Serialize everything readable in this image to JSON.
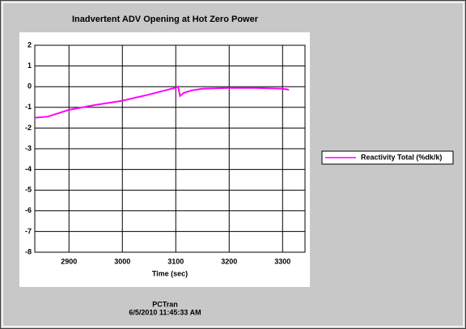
{
  "chart_data": {
    "type": "line",
    "title": "Inadvertent ADV Opening at Hot Zero Power",
    "xlabel": "Time (sec)",
    "annotations": [
      "PCTran",
      "6/5/2010 11:45:33 AM"
    ],
    "x": [
      2836,
      2860,
      2900,
      2950,
      3000,
      3050,
      3080,
      3100,
      3104,
      3106,
      3108,
      3115,
      3130,
      3150,
      3200,
      3250,
      3300,
      3312
    ],
    "series": [
      {
        "name": "Reactivity Total (%dk/k)",
        "color": "#ff00ff",
        "values": [
          -1.5,
          -1.45,
          -1.12,
          -0.88,
          -0.68,
          -0.38,
          -0.18,
          -0.05,
          0,
          -0.2,
          -0.45,
          -0.3,
          -0.18,
          -0.1,
          -0.06,
          -0.06,
          -0.1,
          -0.15
        ]
      }
    ],
    "xlim": [
      2836,
      3342
    ],
    "xticks": [
      2900,
      3000,
      3100,
      3200,
      3300
    ],
    "ylim": [
      -8,
      2
    ],
    "yticks": [
      -8,
      -7,
      -6,
      -5,
      -4,
      -3,
      -2,
      -1,
      0,
      1,
      2
    ],
    "grid": true,
    "legend": "right"
  }
}
